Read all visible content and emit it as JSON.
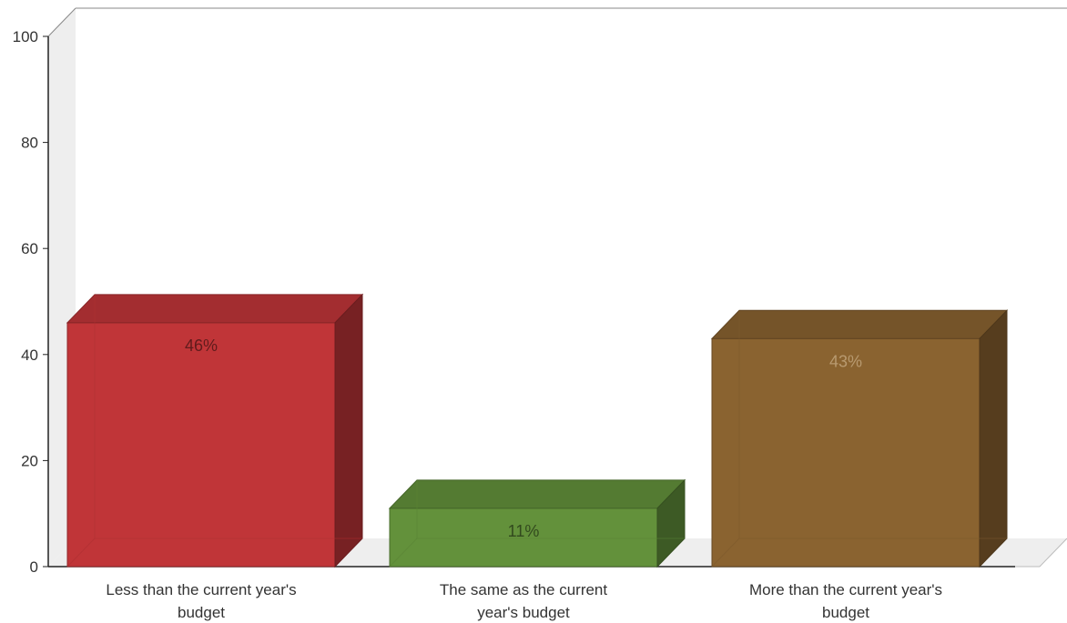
{
  "chart_data": {
    "type": "bar",
    "categories": [
      "Less than the current year's budget",
      "The same as the current year's budget",
      "More than the current year's budget"
    ],
    "category_labels": [
      [
        "Less than the current year's",
        "budget"
      ],
      [
        "The same as the current",
        "year's budget"
      ],
      [
        "More than the current year's",
        "budget"
      ]
    ],
    "values": [
      46,
      11,
      43
    ],
    "data_labels": [
      "46%",
      "11%",
      "43%"
    ],
    "colors": [
      "#c03538",
      "#63913b",
      "#8a6330"
    ],
    "ylim": [
      0,
      100
    ],
    "yticks": [
      0,
      20,
      40,
      60,
      80,
      100
    ],
    "title": "",
    "xlabel": "",
    "ylabel": "",
    "legend": "none",
    "grid": false,
    "style": "3d-bar"
  }
}
